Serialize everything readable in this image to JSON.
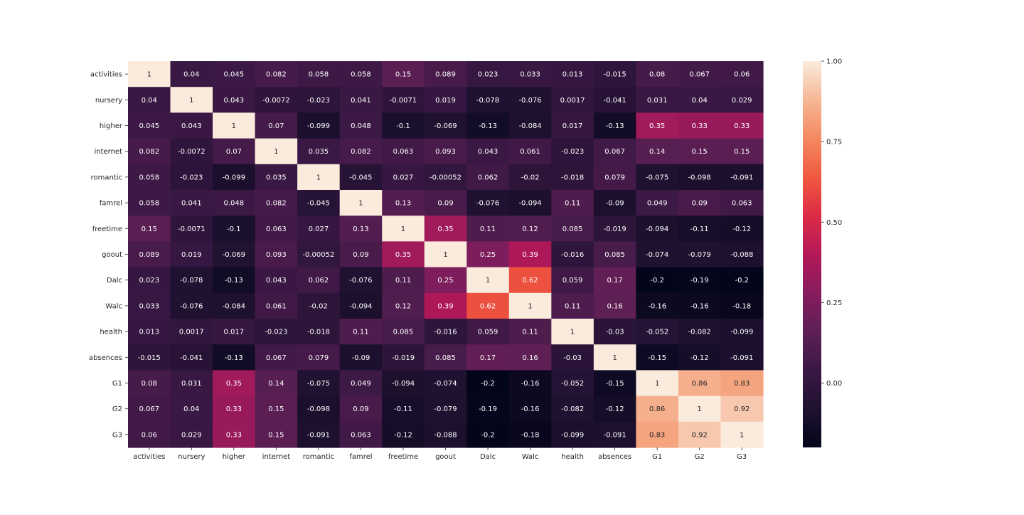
{
  "chart_data": {
    "type": "heatmap",
    "title": "",
    "xlabel": "",
    "ylabel": "",
    "labels": [
      "activities",
      "nursery",
      "higher",
      "internet",
      "romantic",
      "famrel",
      "freetime",
      "goout",
      "Dalc",
      "Walc",
      "health",
      "absences",
      "G1",
      "G2",
      "G3"
    ],
    "matrix": [
      [
        1,
        0.04,
        0.045,
        0.082,
        0.058,
        0.058,
        0.15,
        0.089,
        0.023,
        0.033,
        0.013,
        -0.015,
        0.08,
        0.067,
        0.06
      ],
      [
        0.04,
        1,
        0.043,
        -0.0072,
        -0.023,
        0.041,
        -0.0071,
        0.019,
        -0.078,
        -0.076,
        0.0017,
        -0.041,
        0.031,
        0.04,
        0.029
      ],
      [
        0.045,
        0.043,
        1,
        0.07,
        -0.099,
        0.048,
        -0.1,
        -0.069,
        -0.13,
        -0.084,
        0.017,
        -0.13,
        0.35,
        0.33,
        0.33
      ],
      [
        0.082,
        -0.0072,
        0.07,
        1,
        0.035,
        0.082,
        0.063,
        0.093,
        0.043,
        0.061,
        -0.023,
        0.067,
        0.14,
        0.15,
        0.15
      ],
      [
        0.058,
        -0.023,
        -0.099,
        0.035,
        1,
        -0.045,
        0.027,
        -0.00052,
        0.062,
        -0.02,
        -0.018,
        0.079,
        -0.075,
        -0.098,
        -0.091
      ],
      [
        0.058,
        0.041,
        0.048,
        0.082,
        -0.045,
        1,
        0.13,
        0.09,
        -0.076,
        -0.094,
        0.11,
        -0.09,
        0.049,
        0.09,
        0.063
      ],
      [
        0.15,
        -0.0071,
        -0.1,
        0.063,
        0.027,
        0.13,
        1,
        0.35,
        0.11,
        0.12,
        0.085,
        -0.019,
        -0.094,
        -0.11,
        -0.12
      ],
      [
        0.089,
        0.019,
        -0.069,
        0.093,
        -0.00052,
        0.09,
        0.35,
        1,
        0.25,
        0.39,
        -0.016,
        0.085,
        -0.074,
        -0.079,
        -0.088
      ],
      [
        0.023,
        -0.078,
        -0.13,
        0.043,
        0.062,
        -0.076,
        0.11,
        0.25,
        1,
        0.62,
        0.059,
        0.17,
        -0.2,
        -0.19,
        -0.2
      ],
      [
        0.033,
        -0.076,
        -0.084,
        0.061,
        -0.02,
        -0.094,
        0.12,
        0.39,
        0.62,
        1,
        0.11,
        0.16,
        -0.16,
        -0.16,
        -0.18
      ],
      [
        0.013,
        0.0017,
        0.017,
        -0.023,
        -0.018,
        0.11,
        0.085,
        -0.016,
        0.059,
        0.11,
        1,
        -0.03,
        -0.052,
        -0.082,
        -0.099
      ],
      [
        -0.015,
        -0.041,
        -0.13,
        0.067,
        0.079,
        -0.09,
        -0.019,
        0.085,
        0.17,
        0.16,
        -0.03,
        1,
        -0.15,
        -0.12,
        -0.091
      ],
      [
        0.08,
        0.031,
        0.35,
        0.14,
        -0.075,
        0.049,
        -0.094,
        -0.074,
        -0.2,
        -0.16,
        -0.052,
        -0.15,
        1,
        0.86,
        0.83
      ],
      [
        0.067,
        0.04,
        0.33,
        0.15,
        -0.098,
        0.09,
        -0.11,
        -0.079,
        -0.19,
        -0.16,
        -0.082,
        -0.12,
        0.86,
        1,
        0.92
      ],
      [
        0.06,
        0.029,
        0.33,
        0.15,
        -0.091,
        0.063,
        -0.12,
        -0.088,
        -0.2,
        -0.18,
        -0.099,
        -0.091,
        0.83,
        0.92,
        1
      ]
    ],
    "vmin": -0.2,
    "vmax": 1.0,
    "colormap": "rocket",
    "colorbar_ticks": [
      {
        "value": 1.0,
        "label": "1.00"
      },
      {
        "value": 0.75,
        "label": "0.75"
      },
      {
        "value": 0.5,
        "label": "0.50"
      },
      {
        "value": 0.25,
        "label": "0.25"
      },
      {
        "value": 0.0,
        "label": "0.00"
      }
    ],
    "annotations": true,
    "grid": false,
    "legend": "colorbar-right"
  }
}
